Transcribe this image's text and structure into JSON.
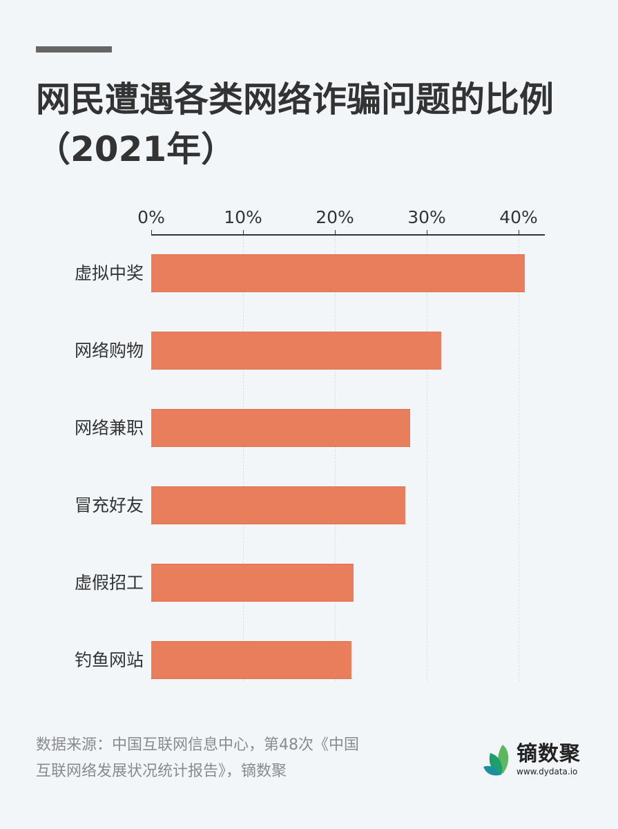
{
  "header": {
    "accent_color": "#666666",
    "title_line1": "网民遭遇各类网络诈骗问题的比例",
    "title_line2": "（2021年）"
  },
  "chart_data": {
    "type": "bar",
    "orientation": "horizontal",
    "title": "网民遭遇各类网络诈骗问题的比例（2021年）",
    "xlabel": "",
    "ylabel": "",
    "x_axis_position": "top",
    "xlim": [
      0,
      43
    ],
    "x_ticks": [
      "0%",
      "10%",
      "20%",
      "30%",
      "40%"
    ],
    "x_tick_values": [
      0,
      10,
      20,
      30,
      40
    ],
    "grid": "vertical dashed",
    "legend": null,
    "categories": [
      "虚拟中奖",
      "网络购物",
      "网络兼职",
      "冒充好友",
      "虚假招工",
      "钓鱼网站"
    ],
    "values": [
      40.7,
      31.6,
      28.2,
      27.7,
      22.0,
      21.8
    ],
    "unit": "%",
    "bar_color": "#e97e5c"
  },
  "footer": {
    "source_line1": "数据来源：中国互联网信息中心，第48次《中国",
    "source_line2": "互联网络发展状况统计报告》，镝数聚",
    "logo_name": "镝数聚",
    "logo_url": "www.dydata.io"
  }
}
